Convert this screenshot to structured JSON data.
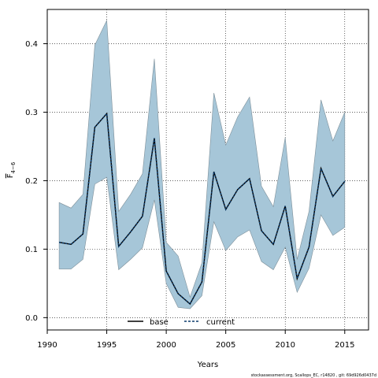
{
  "chart_data": {
    "type": "line",
    "xlabel": "Years",
    "ylabel_main": "F",
    "ylabel_sub": "4−6",
    "xlim": [
      1990,
      2017
    ],
    "ylim": [
      -0.018,
      0.45
    ],
    "xticks": [
      1990,
      1995,
      2000,
      2005,
      2010,
      2015
    ],
    "yticks": [
      0.0,
      0.1,
      0.2,
      0.3,
      0.4
    ],
    "ytick_labels": [
      "0.0",
      "0.1",
      "0.2",
      "0.3",
      "0.4"
    ],
    "grid": true,
    "legend_position": "bottom-center",
    "x": [
      1991,
      1992,
      1993,
      1994,
      1995,
      1996,
      1997,
      1998,
      1999,
      2000,
      2001,
      2002,
      2003,
      2004,
      2005,
      2006,
      2007,
      2008,
      2009,
      2010,
      2011,
      2012,
      2013,
      2014,
      2015
    ],
    "band": {
      "upper": [
        0.168,
        0.16,
        0.18,
        0.398,
        0.434,
        0.155,
        0.18,
        0.21,
        0.378,
        0.11,
        0.09,
        0.03,
        0.08,
        0.328,
        0.252,
        0.293,
        0.322,
        0.192,
        0.162,
        0.263,
        0.085,
        0.155,
        0.318,
        0.258,
        0.3
      ],
      "lower": [
        0.071,
        0.071,
        0.085,
        0.195,
        0.205,
        0.07,
        0.085,
        0.102,
        0.172,
        0.05,
        0.015,
        0.013,
        0.032,
        0.14,
        0.098,
        0.118,
        0.128,
        0.082,
        0.07,
        0.103,
        0.037,
        0.072,
        0.15,
        0.12,
        0.132
      ],
      "color": "#a6c6d8",
      "edge_color": "#7d8f99"
    },
    "series": [
      {
        "name": "base",
        "color": "#000000",
        "style": "solid",
        "values": [
          0.11,
          0.107,
          0.122,
          0.278,
          0.298,
          0.104,
          0.125,
          0.148,
          0.262,
          0.068,
          0.035,
          0.02,
          0.052,
          0.213,
          0.158,
          0.187,
          0.203,
          0.127,
          0.107,
          0.163,
          0.057,
          0.103,
          0.218,
          0.177,
          0.199
        ]
      },
      {
        "name": "current",
        "color": "#0a3a6a",
        "style": "dashed",
        "values": [
          0.11,
          0.107,
          0.122,
          0.278,
          0.298,
          0.104,
          0.125,
          0.148,
          0.262,
          0.068,
          0.035,
          0.02,
          0.052,
          0.213,
          0.158,
          0.187,
          0.203,
          0.127,
          0.107,
          0.163,
          0.057,
          0.103,
          0.218,
          0.177,
          0.199
        ]
      }
    ]
  },
  "credit": "stockassessment.org, Scallops_EC, r14820 , git: 69d926d0437d"
}
